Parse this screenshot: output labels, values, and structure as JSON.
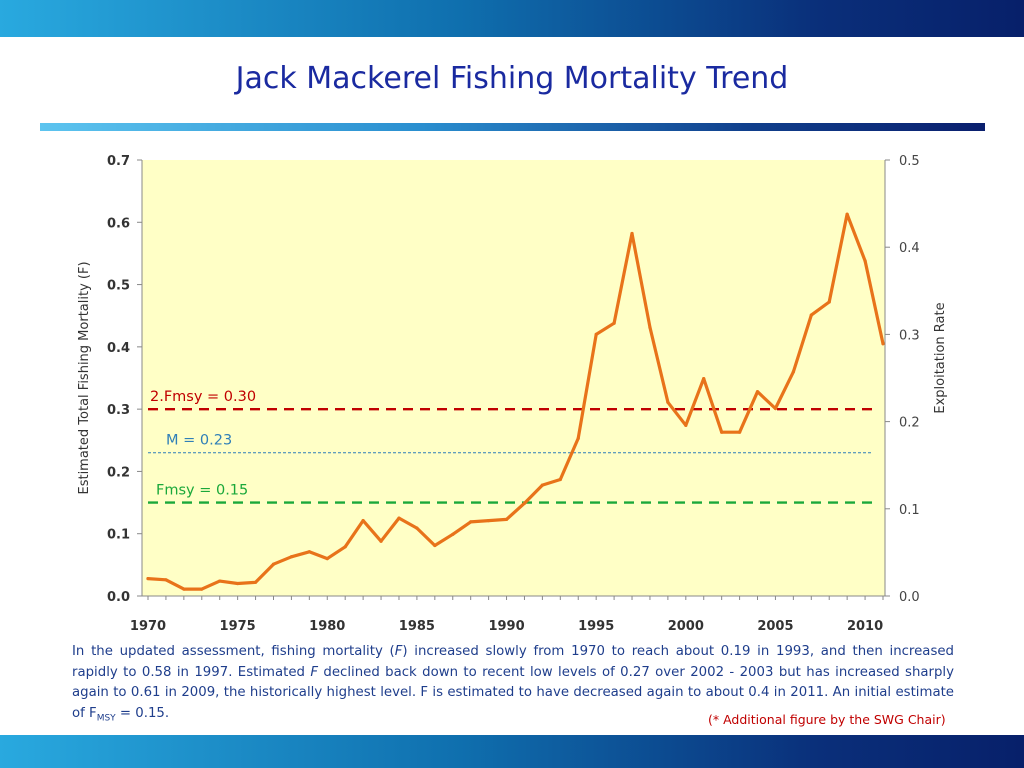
{
  "slide": {
    "title": "Jack Mackerel Fishing Mortality Trend",
    "caption": {
      "part1": "In the updated assessment, fishing mortality (",
      "f_symbol": "F",
      "part2": ") increased slowly from 1970 to reach about 0.19 in 1993, and then increased rapidly to 0.58 in 1997. Estimated ",
      "f_symbol2": "F",
      "part3": " declined back down to recent low levels of 0.27 over 2002 - 2003 but has increased sharply again to 0.61 in 2009, the historically highest level.  F is estimated to have decreased again to about 0.4 in 2011.  An initial estimate of F",
      "msy_sub": "MSY",
      "part4": " = 0.15."
    },
    "footnote": "(* Additional figure by the SWG Chair)"
  },
  "colors": {
    "plot_bg": "#ffffc6",
    "series": "#e8731a",
    "two_fmsy": "#c00000",
    "m_line": "#2f7fb8",
    "fmsy_line": "#1aa83a",
    "title": "#1a2aa0"
  },
  "chart_data": {
    "type": "line",
    "title": "",
    "xlabel": "",
    "ylabel": "Estimated Total Fishing Mortality (F)",
    "y2label": "Exploitation Rate",
    "xlim": [
      1970,
      2011
    ],
    "ylim": [
      0,
      0.7
    ],
    "y2lim": [
      0,
      0.5
    ],
    "x_ticks": [
      1970,
      1975,
      1980,
      1985,
      1990,
      1995,
      2000,
      2005,
      2010
    ],
    "y_ticks": [
      "0.0",
      "0.1",
      "0.2",
      "0.3",
      "0.4",
      "0.5",
      "0.6",
      "0.7"
    ],
    "y2_ticks": [
      "0.0",
      "0.1",
      "0.2",
      "0.3",
      "0.4",
      "0.5"
    ],
    "grid": false,
    "series": [
      {
        "x": [
          1970,
          1971,
          1972,
          1973,
          1974,
          1975,
          1976,
          1977,
          1978,
          1979,
          1980,
          1981,
          1982,
          1983,
          1984,
          1985,
          1986,
          1987,
          1988,
          1989,
          1990,
          1991,
          1992,
          1993,
          1994,
          1995,
          1996,
          1997,
          1998,
          1999,
          2000,
          2001,
          2002,
          2003,
          2004,
          2005,
          2006,
          2007,
          2008,
          2009,
          2010,
          2011
        ],
        "values": [
          0.028,
          0.026,
          0.011,
          0.011,
          0.024,
          0.02,
          0.022,
          0.051,
          0.063,
          0.071,
          0.06,
          0.079,
          0.121,
          0.088,
          0.125,
          0.109,
          0.081,
          0.099,
          0.119,
          0.121,
          0.123,
          0.149,
          0.178,
          0.187,
          0.253,
          0.42,
          0.438,
          0.582,
          0.431,
          0.311,
          0.274,
          0.349,
          0.263,
          0.263,
          0.328,
          0.301,
          0.36,
          0.451,
          0.472,
          0.613,
          0.538,
          0.405
        ]
      }
    ],
    "reference_lines": [
      {
        "label": "2.Fmsy = 0.30",
        "value": 0.3,
        "style": "dashed"
      },
      {
        "label": "M  = 0.23",
        "value": 0.23,
        "style": "dotted"
      },
      {
        "label": "Fmsy = 0.15",
        "value": 0.15,
        "style": "dashed"
      }
    ]
  }
}
